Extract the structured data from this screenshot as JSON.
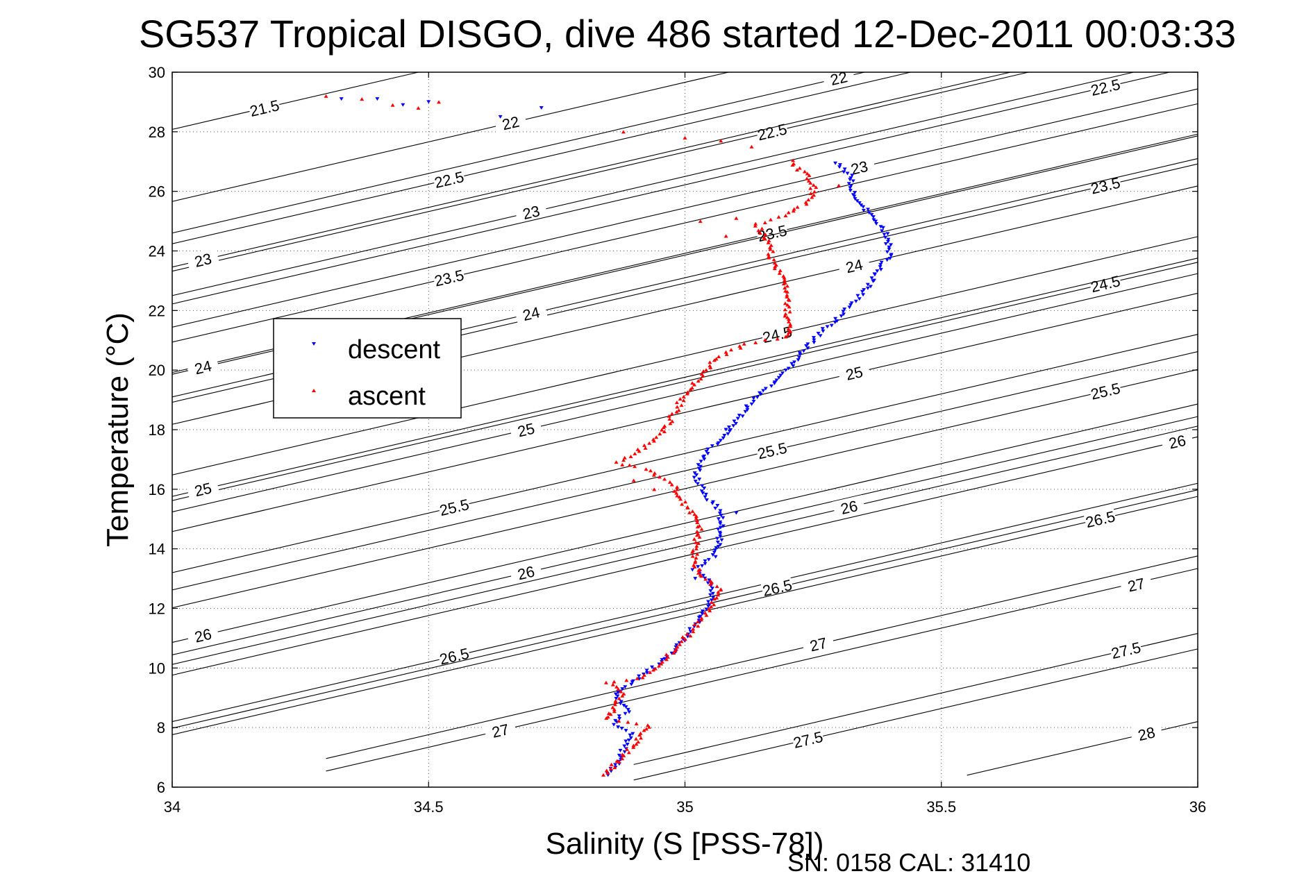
{
  "chart_data": {
    "type": "scatter",
    "title": "SG537 Tropical DISGO, dive 486 started 12-Dec-2011 00:03:33",
    "xlabel": "Salinity (S [PSS-78])",
    "ylabel": "Temperature (°C)",
    "xlim": [
      34,
      36
    ],
    "ylim": [
      6,
      30
    ],
    "xticks": [
      "34",
      "34.5",
      "35",
      "35.5",
      "36"
    ],
    "yticks": [
      "6",
      "8",
      "10",
      "12",
      "14",
      "16",
      "18",
      "20",
      "22",
      "24",
      "26",
      "28",
      "30"
    ],
    "grid": true,
    "legend_position": "left-middle",
    "footer": "SN: 0158  CAL: 31410",
    "colors": {
      "descent": "#0000ff",
      "ascent": "#ff0000",
      "contour": "#000000"
    },
    "series": [
      {
        "name": "descent",
        "marker": "triangle-down",
        "legend_label": "descent",
        "profile": [
          [
            34.85,
            6.4
          ],
          [
            34.87,
            6.8
          ],
          [
            34.88,
            7.3
          ],
          [
            34.9,
            7.8
          ],
          [
            34.86,
            8.1
          ],
          [
            34.89,
            8.6
          ],
          [
            34.86,
            9.1
          ],
          [
            34.9,
            9.5
          ],
          [
            34.93,
            9.9
          ],
          [
            34.97,
            10.4
          ],
          [
            35.0,
            11.0
          ],
          [
            35.03,
            11.6
          ],
          [
            35.05,
            12.2
          ],
          [
            35.05,
            12.8
          ],
          [
            35.02,
            13.3
          ],
          [
            35.06,
            13.8
          ],
          [
            35.07,
            14.5
          ],
          [
            35.07,
            15.2
          ],
          [
            35.04,
            15.8
          ],
          [
            35.02,
            16.4
          ],
          [
            35.04,
            17.2
          ],
          [
            35.08,
            17.8
          ],
          [
            35.11,
            18.5
          ],
          [
            35.14,
            19.1
          ],
          [
            35.18,
            19.6
          ],
          [
            35.21,
            20.2
          ],
          [
            35.24,
            20.8
          ],
          [
            35.27,
            21.3
          ],
          [
            35.3,
            21.8
          ],
          [
            35.34,
            22.4
          ],
          [
            35.37,
            23.1
          ],
          [
            35.4,
            23.9
          ],
          [
            35.39,
            24.6
          ],
          [
            35.36,
            25.2
          ],
          [
            35.33,
            25.9
          ],
          [
            35.32,
            26.6
          ],
          [
            35.29,
            27.0
          ]
        ],
        "scatter_points": [
          [
            34.72,
            28.8
          ],
          [
            34.64,
            28.5
          ],
          [
            34.45,
            28.9
          ],
          [
            34.5,
            29.0
          ],
          [
            34.4,
            29.1
          ],
          [
            34.33,
            29.1
          ],
          [
            35.08,
            18.0
          ],
          [
            35.1,
            15.2
          ],
          [
            35.02,
            13.0
          ]
        ]
      },
      {
        "name": "ascent",
        "marker": "triangle-up",
        "legend_label": "ascent",
        "profile": [
          [
            34.84,
            6.4
          ],
          [
            34.87,
            6.9
          ],
          [
            34.9,
            7.4
          ],
          [
            34.93,
            8.1
          ],
          [
            34.85,
            8.3
          ],
          [
            34.86,
            8.7
          ],
          [
            34.88,
            9.2
          ],
          [
            34.85,
            9.5
          ],
          [
            34.92,
            9.7
          ],
          [
            34.96,
            10.3
          ],
          [
            34.99,
            10.8
          ],
          [
            35.02,
            11.4
          ],
          [
            35.05,
            12.0
          ],
          [
            35.07,
            12.6
          ],
          [
            35.04,
            13.0
          ],
          [
            35.02,
            13.4
          ],
          [
            35.02,
            14.1
          ],
          [
            35.03,
            14.8
          ],
          [
            35.0,
            15.5
          ],
          [
            34.98,
            16.1
          ],
          [
            34.92,
            16.7
          ],
          [
            34.87,
            16.9
          ],
          [
            34.92,
            17.4
          ],
          [
            34.96,
            18.0
          ],
          [
            34.98,
            18.6
          ],
          [
            35.0,
            19.2
          ],
          [
            35.03,
            19.8
          ],
          [
            35.06,
            20.4
          ],
          [
            35.12,
            20.9
          ],
          [
            35.2,
            21.1
          ],
          [
            35.2,
            21.7
          ],
          [
            35.2,
            22.4
          ],
          [
            35.19,
            23.1
          ],
          [
            35.17,
            23.7
          ],
          [
            35.16,
            24.4
          ],
          [
            35.14,
            24.9
          ],
          [
            35.2,
            25.2
          ],
          [
            35.25,
            25.8
          ],
          [
            35.25,
            26.3
          ],
          [
            35.22,
            26.8
          ],
          [
            35.2,
            27.1
          ]
        ],
        "scatter_points": [
          [
            34.3,
            29.2
          ],
          [
            34.37,
            29.1
          ],
          [
            34.43,
            28.9
          ],
          [
            34.48,
            28.8
          ],
          [
            34.52,
            29.0
          ],
          [
            34.88,
            28.0
          ],
          [
            35.0,
            27.8
          ],
          [
            35.07,
            27.7
          ],
          [
            35.13,
            27.5
          ],
          [
            35.1,
            25.1
          ],
          [
            35.03,
            25.0
          ],
          [
            35.08,
            24.5
          ],
          [
            35.3,
            26.2
          ],
          [
            34.9,
            16.3
          ],
          [
            34.94,
            16.0
          ]
        ]
      }
    ],
    "contours": [
      {
        "label": "21.5",
        "x0": 34.0,
        "x1": 34.55,
        "label_at": [
          34.18,
          28.8
        ]
      },
      {
        "label": "22",
        "x0": 34.0,
        "x1": 36.0,
        "label_at": [
          34.66,
          28.3
        ]
      },
      {
        "label": "22",
        "x0": 34.0,
        "x1": 36.0,
        "label_at": [
          35.3,
          29.8
        ]
      },
      {
        "label": "22.5",
        "x0": 34.0,
        "x1": 36.0,
        "label_at": [
          34.54,
          26.4
        ]
      },
      {
        "label": "22.5",
        "x0": 34.0,
        "x1": 36.0,
        "label_at": [
          35.17,
          28.0
        ]
      },
      {
        "label": "22.5",
        "x0": 34.0,
        "x1": 36.0,
        "label_at": [
          35.82,
          29.5
        ]
      },
      {
        "label": "23",
        "x0": 34.0,
        "x1": 36.0,
        "label_at": [
          34.06,
          23.7
        ]
      },
      {
        "label": "23",
        "x0": 34.0,
        "x1": 36.0,
        "label_at": [
          34.7,
          25.3
        ]
      },
      {
        "label": "23",
        "x0": 34.0,
        "x1": 36.0,
        "label_at": [
          35.34,
          26.8
        ]
      },
      {
        "label": "23.5",
        "x0": 34.0,
        "x1": 36.0,
        "label_at": [
          34.54,
          23.1
        ]
      },
      {
        "label": "23.5",
        "x0": 34.0,
        "x1": 36.0,
        "label_at": [
          35.17,
          24.6
        ]
      },
      {
        "label": "23.5",
        "x0": 34.0,
        "x1": 36.0,
        "label_at": [
          35.82,
          26.2
        ]
      },
      {
        "label": "24",
        "x0": 34.0,
        "x1": 36.0,
        "label_at": [
          34.06,
          20.1
        ]
      },
      {
        "label": "24",
        "x0": 34.0,
        "x1": 36.0,
        "label_at": [
          34.7,
          21.9
        ]
      },
      {
        "label": "24",
        "x0": 34.0,
        "x1": 36.0,
        "label_at": [
          35.33,
          23.5
        ]
      },
      {
        "label": "24.5",
        "x0": 34.0,
        "x1": 36.0,
        "label_at": [
          35.18,
          21.2
        ]
      },
      {
        "label": "24.5",
        "x0": 34.0,
        "x1": 36.0,
        "label_at": [
          35.82,
          22.9
        ]
      },
      {
        "label": "25",
        "x0": 34.0,
        "x1": 36.0,
        "label_at": [
          34.06,
          16.0
        ]
      },
      {
        "label": "25",
        "x0": 34.0,
        "x1": 36.0,
        "label_at": [
          34.69,
          18.0
        ]
      },
      {
        "label": "25",
        "x0": 34.0,
        "x1": 36.0,
        "label_at": [
          35.33,
          19.9
        ]
      },
      {
        "label": "25.5",
        "x0": 34.0,
        "x1": 36.0,
        "label_at": [
          34.55,
          15.4
        ]
      },
      {
        "label": "25.5",
        "x0": 34.0,
        "x1": 36.0,
        "label_at": [
          35.17,
          17.3
        ]
      },
      {
        "label": "25.5",
        "x0": 34.0,
        "x1": 36.0,
        "label_at": [
          35.82,
          19.3
        ]
      },
      {
        "label": "26",
        "x0": 34.0,
        "x1": 36.0,
        "label_at": [
          34.06,
          11.1
        ]
      },
      {
        "label": "26",
        "x0": 34.0,
        "x1": 36.0,
        "label_at": [
          34.69,
          13.2
        ]
      },
      {
        "label": "26",
        "x0": 34.0,
        "x1": 36.0,
        "label_at": [
          35.32,
          15.4
        ]
      },
      {
        "label": "26",
        "x0": 34.0,
        "x1": 36.0,
        "label_at": [
          35.96,
          17.6
        ]
      },
      {
        "label": "26.5",
        "x0": 34.0,
        "x1": 36.0,
        "label_at": [
          34.55,
          10.4
        ]
      },
      {
        "label": "26.5",
        "x0": 34.0,
        "x1": 36.0,
        "label_at": [
          35.18,
          12.7
        ]
      },
      {
        "label": "26.5",
        "x0": 34.0,
        "x1": 36.0,
        "label_at": [
          35.81,
          15.0
        ]
      },
      {
        "label": "27",
        "x0": 34.3,
        "x1": 36.0,
        "label_at": [
          34.64,
          7.9
        ]
      },
      {
        "label": "27",
        "x0": 34.3,
        "x1": 36.0,
        "label_at": [
          35.26,
          10.8
        ]
      },
      {
        "label": "27",
        "x0": 34.3,
        "x1": 36.0,
        "label_at": [
          35.88,
          12.8
        ]
      },
      {
        "label": "27.5",
        "x0": 34.9,
        "x1": 36.0,
        "label_at": [
          35.24,
          7.6
        ]
      },
      {
        "label": "27.5",
        "x0": 34.9,
        "x1": 36.0,
        "label_at": [
          35.86,
          10.6
        ]
      },
      {
        "label": "28",
        "x0": 35.55,
        "x1": 36.0,
        "label_at": [
          35.9,
          7.8
        ]
      }
    ]
  }
}
